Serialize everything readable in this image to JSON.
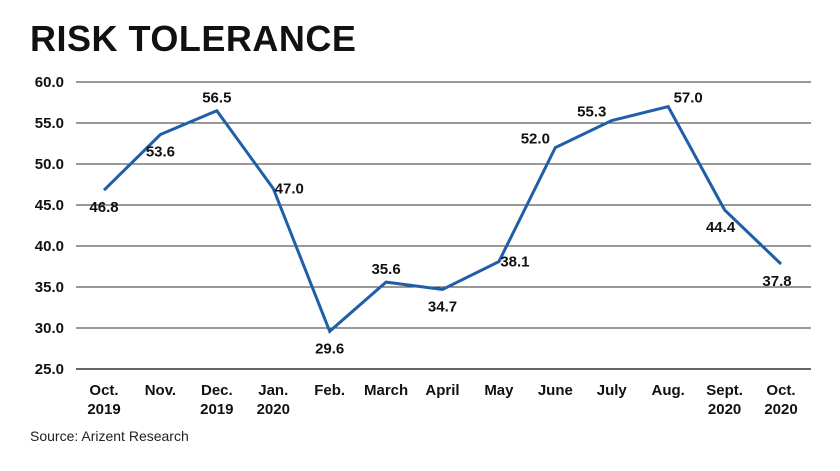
{
  "title": "RISK TOLERANCE",
  "source": "Source: Arizent Research",
  "colors": {
    "line": "#1f5fa8",
    "grid": "#333333"
  },
  "chart_data": {
    "type": "line",
    "title": "RISK TOLERANCE",
    "categories": [
      [
        "Oct.",
        "2019"
      ],
      [
        "Nov."
      ],
      [
        "Dec.",
        "2019"
      ],
      [
        "Jan.",
        "2020"
      ],
      [
        "Feb."
      ],
      [
        "March"
      ],
      [
        "April"
      ],
      [
        "May"
      ],
      [
        "June"
      ],
      [
        "July"
      ],
      [
        "Aug."
      ],
      [
        "Sept.",
        "2020"
      ],
      [
        "Oct.",
        "2020"
      ]
    ],
    "values": [
      46.8,
      53.6,
      56.5,
      47.0,
      29.6,
      35.6,
      34.7,
      38.1,
      52.0,
      55.3,
      57.0,
      44.4,
      37.8
    ],
    "value_labels": [
      "46.8",
      "53.6",
      "56.5",
      "47.0",
      "29.6",
      "35.6",
      "34.7",
      "38.1",
      "52.0",
      "55.3",
      "57.0",
      "44.4",
      "37.8"
    ],
    "yticks": [
      "25.0",
      "30.0",
      "35.0",
      "40.0",
      "45.0",
      "50.0",
      "55.0",
      "60.0"
    ],
    "ylim": [
      25,
      60
    ],
    "grid": true,
    "legend": "none"
  }
}
